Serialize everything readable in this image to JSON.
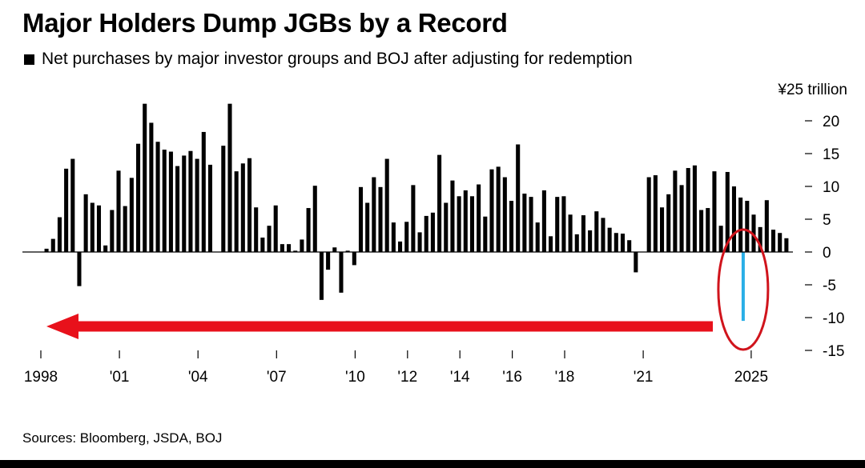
{
  "title": "Major Holders Dump JGBs by a Record",
  "subtitle": "Net purchases by major investor groups and BOJ after adjusting for redemption",
  "source": "Sources: Bloomberg, JSDA, BOJ",
  "colors": {
    "bar": "#000000",
    "highlight_bar": "#29aee6",
    "arrow": "#e8111b",
    "circle": "#d0141c",
    "axis": "#000000",
    "gridline": "#c8c8c8"
  },
  "chart_data": {
    "type": "bar",
    "title": "Major Holders Dump JGBs by a Record",
    "subtitle": "Net purchases by major investor groups and BOJ after adjusting for redemption",
    "unit_label": "¥25 trillion",
    "ylim": [
      -15,
      25
    ],
    "yticks": [
      "20",
      "15",
      "10",
      "5",
      "0",
      "-5",
      "-10",
      "-15"
    ],
    "ytick_values": [
      20,
      15,
      10,
      5,
      0,
      -5,
      -10,
      -15
    ],
    "x_tick_labels": [
      {
        "label": "1998",
        "t": 1998.0
      },
      {
        "label": "'01",
        "t": 2001.0
      },
      {
        "label": "'04",
        "t": 2004.0
      },
      {
        "label": "'07",
        "t": 2007.0
      },
      {
        "label": "'10",
        "t": 2010.0
      },
      {
        "label": "'12",
        "t": 2012.0
      },
      {
        "label": "'14",
        "t": 2014.0
      },
      {
        "label": "'16",
        "t": 2016.0
      },
      {
        "label": "'18",
        "t": 2018.0
      },
      {
        "label": "'21",
        "t": 2021.0
      },
      {
        "label": "2025",
        "t": 2025.0
      }
    ],
    "quarter_start": "1998-Q1",
    "values": [
      0.5,
      2,
      5.3,
      12.7,
      14.2,
      -5.2,
      8.8,
      7.5,
      7.1,
      1,
      6.4,
      12.4,
      7,
      11.3,
      16.5,
      22.6,
      19.7,
      16.8,
      15.6,
      15.3,
      13.1,
      14.7,
      15.4,
      14.2,
      18.3,
      13.3,
      0,
      16.2,
      22.6,
      12.3,
      13.5,
      14.3,
      6.8,
      2.2,
      4,
      7.1,
      1.2,
      1.2,
      0.2,
      1.9,
      6.7,
      10.1,
      -7.3,
      -2.7,
      0.7,
      -6.2,
      0.2,
      -2,
      9.9,
      7.5,
      11.4,
      9.9,
      14.2,
      4.5,
      1.6,
      4.6,
      10.2,
      3,
      5.5,
      6,
      14.8,
      7.5,
      10.9,
      8.5,
      9.4,
      8.5,
      10.3,
      5.4,
      12.6,
      13,
      11.4,
      7.8,
      16.4,
      8.9,
      8.4,
      4.5,
      9.4,
      2.4,
      8.4,
      8.5,
      5.7,
      2.7,
      5.6,
      3.3,
      6.2,
      5.2,
      3.7,
      2.9,
      2.8,
      1.8,
      -3.1,
      0,
      11.4,
      11.7,
      6.8,
      8.8,
      12.4,
      10.2,
      12.8,
      13.2,
      6.4,
      6.7,
      12.3,
      4,
      12.2,
      10,
      8.3,
      7.8,
      5.7,
      3.8,
      7.9,
      3.4,
      2.9,
      2.1
    ],
    "highlight": {
      "label": "2025",
      "value": -10.5
    },
    "annotations": [
      {
        "type": "arrow",
        "direction": "left",
        "description": "red arrow pointing back toward 1998"
      },
      {
        "type": "circle",
        "description": "red oval around the 2025 bar"
      }
    ],
    "grid": false,
    "legend": "top-left"
  }
}
